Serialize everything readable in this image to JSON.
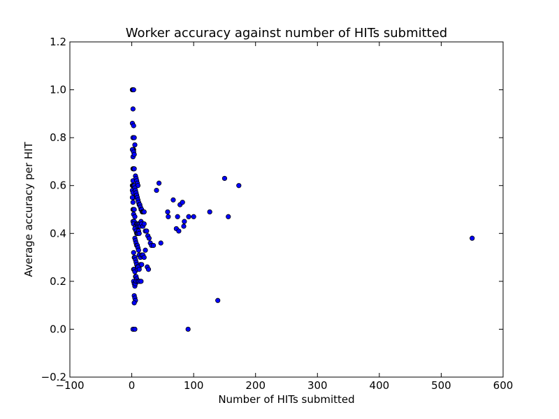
{
  "chart_data": {
    "type": "scatter",
    "title": "Worker accuracy against number of HITs submitted",
    "xlabel": "Number of HITs submitted",
    "ylabel": "Average accuracy per HIT",
    "xlim": [
      -100,
      600
    ],
    "ylim": [
      -0.2,
      1.2
    ],
    "xticks": [
      -100,
      0,
      100,
      200,
      300,
      400,
      500,
      600
    ],
    "xtick_labels": [
      "−100",
      "0",
      "100",
      "200",
      "300",
      "400",
      "500",
      "600"
    ],
    "yticks": [
      -0.2,
      0.0,
      0.2,
      0.4,
      0.6,
      0.8,
      1.0,
      1.2
    ],
    "ytick_labels": [
      "−0.2",
      "0.0",
      "0.2",
      "0.4",
      "0.6",
      "0.8",
      "1.0",
      "1.2"
    ],
    "grid": false,
    "marker_color": "#0000ff",
    "marker_edge_color": "#000000",
    "x": [
      1,
      2,
      3,
      2,
      1,
      3,
      2,
      4,
      3,
      2,
      1,
      2,
      3,
      4,
      5,
      2,
      3,
      4,
      2,
      1,
      2,
      3,
      4,
      1,
      2,
      3,
      1,
      2,
      2,
      3,
      4,
      3,
      2,
      5,
      4,
      3,
      6,
      5,
      7,
      8,
      9,
      10,
      11,
      12,
      6,
      7,
      8,
      9,
      10,
      5,
      6,
      7,
      8,
      9,
      10,
      11,
      12,
      13,
      14,
      15,
      16,
      17,
      18,
      19,
      20,
      8,
      9,
      10,
      11,
      12,
      13,
      14,
      15,
      16,
      18,
      20,
      22,
      24,
      26,
      28,
      30,
      32,
      35,
      5,
      6,
      7,
      8,
      9,
      10,
      11,
      12,
      14,
      16,
      18,
      20,
      22,
      25,
      27,
      3,
      4,
      5,
      6,
      7,
      8,
      9,
      10,
      12,
      14,
      16,
      3,
      4,
      5,
      6,
      7,
      8,
      9,
      10,
      12,
      14,
      3,
      4,
      5,
      6,
      7,
      10,
      12,
      15,
      4,
      5,
      6,
      4,
      3,
      2,
      5,
      40,
      44,
      47,
      58,
      59,
      67,
      72,
      74,
      76,
      78,
      82,
      84,
      85,
      92,
      100,
      126,
      150,
      156,
      173,
      139,
      91,
      550
    ],
    "y": [
      1.0,
      1.0,
      1.0,
      0.92,
      0.86,
      0.85,
      0.8,
      0.8,
      0.75,
      0.75,
      0.75,
      0.72,
      0.74,
      0.73,
      0.77,
      0.67,
      0.67,
      0.67,
      0.62,
      0.6,
      0.6,
      0.6,
      0.6,
      0.58,
      0.57,
      0.55,
      0.55,
      0.53,
      0.5,
      0.5,
      0.5,
      0.48,
      0.45,
      0.47,
      0.45,
      0.44,
      0.43,
      0.42,
      0.41,
      0.4,
      0.4,
      0.4,
      0.41,
      0.4,
      0.64,
      0.63,
      0.62,
      0.61,
      0.6,
      0.59,
      0.58,
      0.57,
      0.56,
      0.55,
      0.54,
      0.53,
      0.52,
      0.52,
      0.51,
      0.5,
      0.5,
      0.49,
      0.49,
      0.49,
      0.49,
      0.44,
      0.44,
      0.43,
      0.44,
      0.43,
      0.44,
      0.43,
      0.45,
      0.44,
      0.43,
      0.44,
      0.41,
      0.41,
      0.39,
      0.38,
      0.36,
      0.35,
      0.35,
      0.38,
      0.37,
      0.36,
      0.35,
      0.35,
      0.34,
      0.33,
      0.31,
      0.3,
      0.31,
      0.31,
      0.3,
      0.33,
      0.26,
      0.25,
      0.32,
      0.3,
      0.3,
      0.29,
      0.28,
      0.27,
      0.26,
      0.26,
      0.26,
      0.27,
      0.27,
      0.25,
      0.25,
      0.24,
      0.22,
      0.22,
      0.21,
      0.25,
      0.26,
      0.25,
      0.2,
      0.2,
      0.19,
      0.18,
      0.19,
      0.2,
      0.2,
      0.2,
      0.2,
      0.14,
      0.13,
      0.12,
      0.11,
      0.0,
      0.0,
      0.0,
      0.58,
      0.61,
      0.36,
      0.49,
      0.47,
      0.54,
      0.42,
      0.47,
      0.41,
      0.52,
      0.53,
      0.43,
      0.45,
      0.47,
      0.47,
      0.49,
      0.63,
      0.47,
      0.6,
      0.12,
      0.0,
      0.38
    ]
  }
}
